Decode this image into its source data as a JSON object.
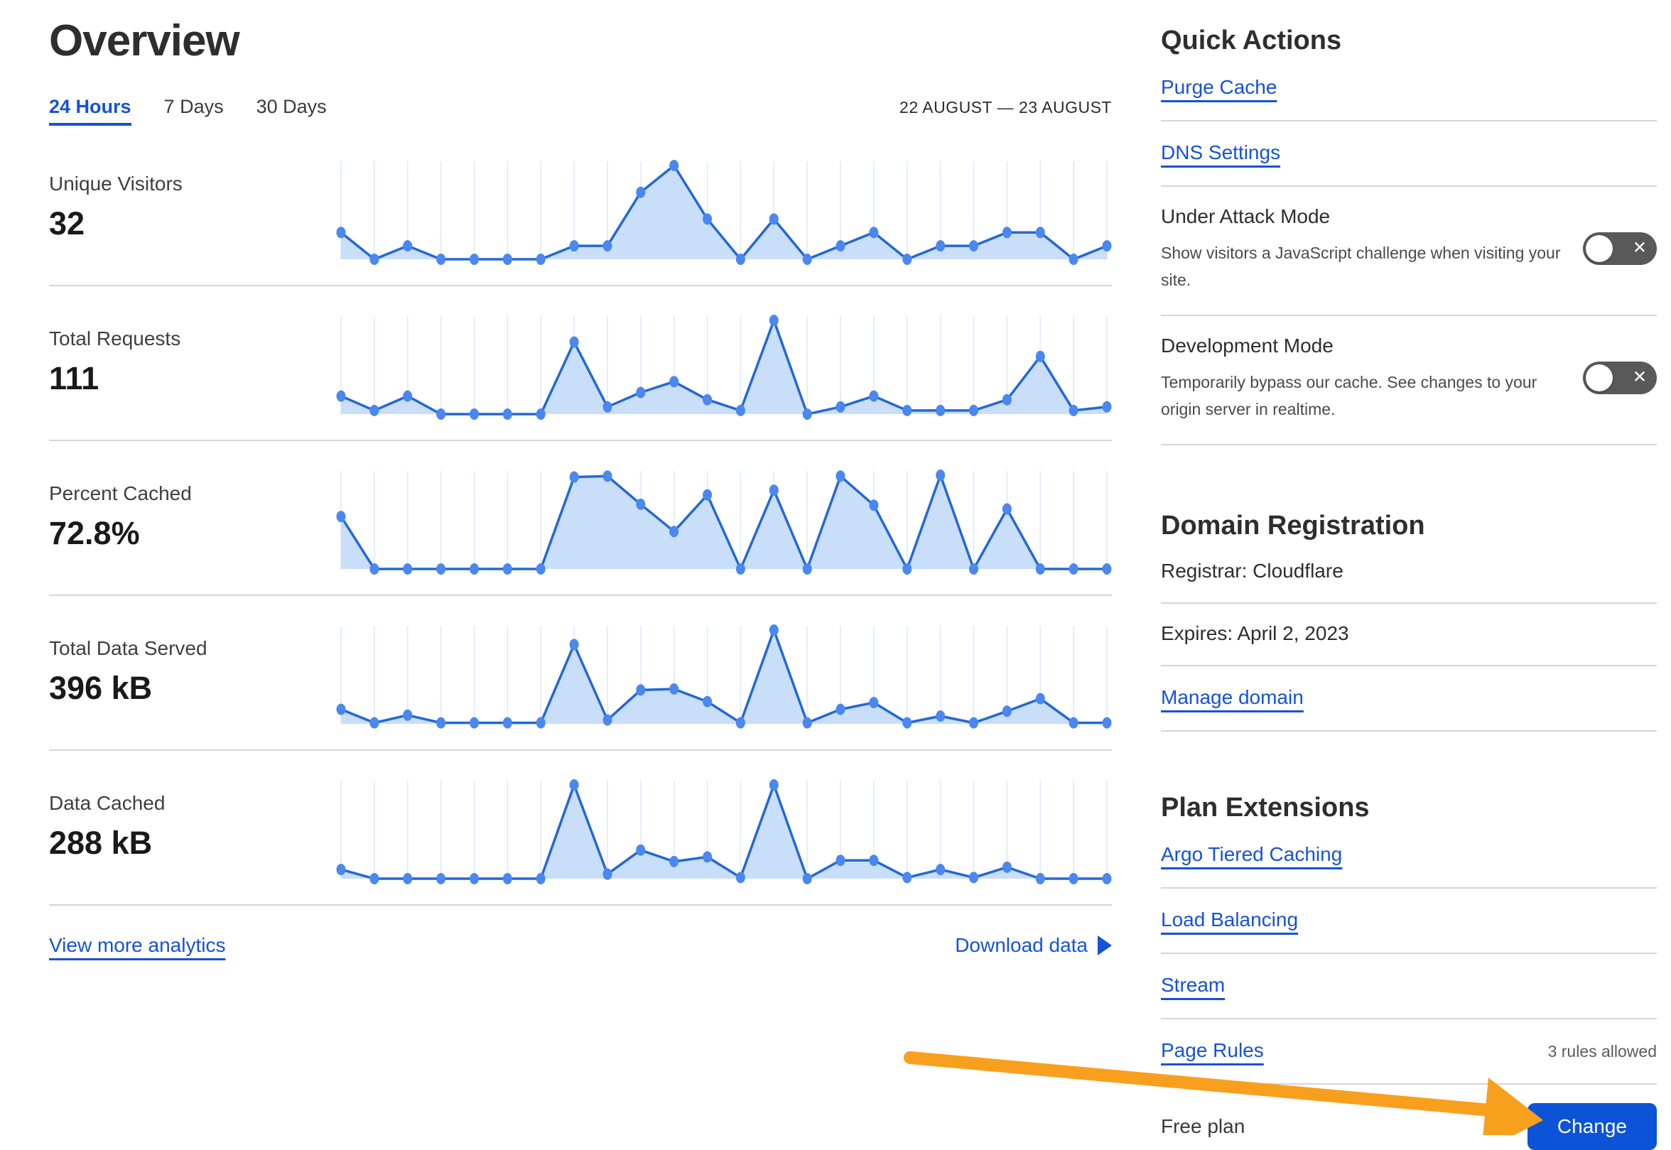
{
  "page": {
    "title": "Overview",
    "tabs": [
      {
        "label": "24 Hours",
        "active": true
      },
      {
        "label": "7 Days",
        "active": false
      },
      {
        "label": "30 Days",
        "active": false
      }
    ],
    "date_range": "22 AUGUST — 23 AUGUST",
    "view_more_label": "View more analytics",
    "download_label": "Download data"
  },
  "metrics": [
    {
      "label": "Unique Visitors",
      "value": "32"
    },
    {
      "label": "Total Requests",
      "value": "111"
    },
    {
      "label": "Percent Cached",
      "value": "72.8%"
    },
    {
      "label": "Total Data Served",
      "value": "396 kB"
    },
    {
      "label": "Data Cached",
      "value": "288 kB"
    }
  ],
  "chart_data": [
    {
      "type": "area",
      "title": "Unique Visitors (hourly, 24 Hours view)",
      "x_axis": "24 hourly points, unlabeled",
      "grid": "vertical gridlines only",
      "unit": "visitors",
      "total_shown": "32",
      "values": [
        2,
        0,
        1,
        0,
        0,
        0,
        0,
        1,
        1,
        5,
        7,
        3,
        0,
        3,
        0,
        1,
        2,
        0,
        1,
        1,
        2,
        2,
        0,
        1
      ]
    },
    {
      "type": "area",
      "title": "Total Requests (hourly, 24 Hours view)",
      "x_axis": "24 hourly points, unlabeled",
      "grid": "vertical gridlines only",
      "unit": "requests",
      "total_shown": "111",
      "values": [
        5,
        1,
        5,
        0,
        0,
        0,
        0,
        20,
        2,
        6,
        9,
        4,
        1,
        26,
        0,
        2,
        5,
        1,
        1,
        1,
        4,
        16,
        1,
        2
      ]
    },
    {
      "type": "area",
      "title": "Percent Cached (hourly, 24 Hours view)",
      "x_axis": "24 hourly points, unlabeled",
      "grid": "vertical gridlines only",
      "unit": "%",
      "total_shown": "72.8%",
      "values": [
        56,
        0,
        0,
        0,
        0,
        0,
        0,
        98,
        99,
        69,
        40,
        79,
        0,
        84,
        0,
        99,
        68,
        0,
        100,
        0,
        64,
        0,
        0,
        0
      ]
    },
    {
      "type": "area",
      "title": "Total Data Served (hourly, 24 Hours view)",
      "x_axis": "24 hourly points, unlabeled",
      "grid": "vertical gridlines only",
      "unit": "kB",
      "total_shown": "396 kB",
      "values": [
        15,
        1,
        9,
        1,
        1,
        1,
        1,
        82,
        4,
        35,
        36,
        23,
        1,
        97,
        1,
        15,
        22,
        1,
        8,
        1,
        13,
        26,
        1,
        1
      ]
    },
    {
      "type": "area",
      "title": "Data Cached (hourly, 24 Hours view)",
      "x_axis": "24 hourly points, unlabeled",
      "grid": "vertical gridlines only",
      "unit": "kB",
      "total_shown": "288 kB",
      "values": [
        8,
        0,
        0,
        0,
        0,
        0,
        0,
        82,
        4,
        25,
        15,
        19,
        1,
        82,
        0,
        16,
        16,
        1,
        8,
        1,
        10,
        0,
        0,
        0
      ]
    }
  ],
  "quick_actions": {
    "heading": "Quick Actions",
    "links": [
      "Purge Cache",
      "DNS Settings"
    ],
    "toggles": [
      {
        "title": "Under Attack Mode",
        "description": "Show visitors a JavaScript challenge when visiting your site.",
        "state": "off"
      },
      {
        "title": "Development Mode",
        "description": "Temporarily bypass our cache. See changes to your origin server in realtime.",
        "state": "off"
      }
    ]
  },
  "domain_registration": {
    "heading": "Domain Registration",
    "registrar": "Registrar: Cloudflare",
    "expires": "Expires: April 2, 2023",
    "manage_link": "Manage domain"
  },
  "plan_extensions": {
    "heading": "Plan Extensions",
    "links": [
      "Argo Tiered Caching",
      "Load Balancing",
      "Stream",
      "Page Rules"
    ],
    "page_rules_note": "3 rules allowed",
    "plan_label": "Free plan",
    "change_button": "Change"
  },
  "colors": {
    "link": "#1652d6",
    "chart-line": "#2368d4",
    "chart-fill": "#c9def9",
    "chart-dot": "#4a87ef",
    "chart-grid": "#e4edfb",
    "toggle-bg": "#595959",
    "button-bg": "#0d53d8",
    "arrow": "#f8a01e",
    "divider": "#d6d6d6"
  }
}
